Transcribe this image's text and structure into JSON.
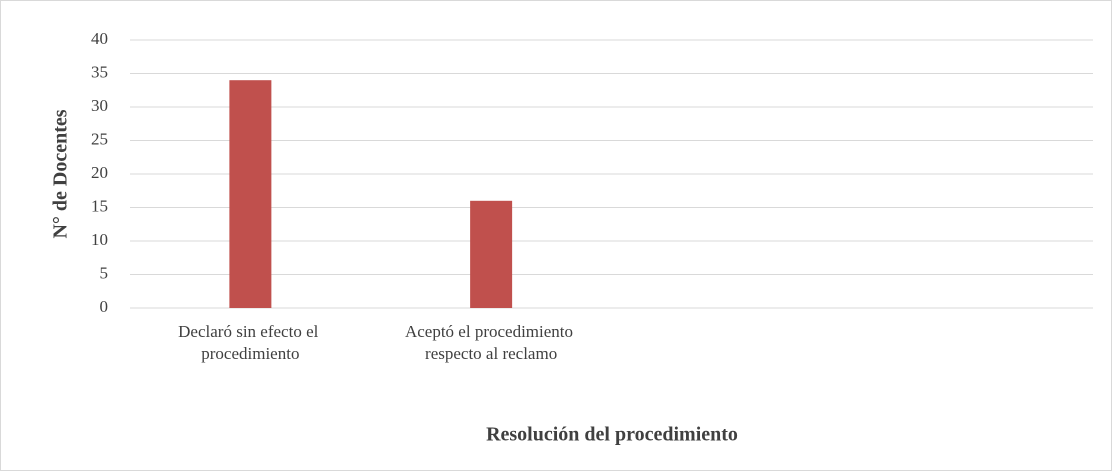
{
  "chart_data": {
    "type": "bar",
    "categories": [
      "Declaró sin efecto el procedimiento",
      "Aceptó el procedimiento respecto al reclamo",
      null,
      null
    ],
    "values": [
      34,
      16,
      null,
      null
    ],
    "color": "#c0504d",
    "ylim": [
      0,
      40
    ],
    "yticks": [
      0,
      5,
      10,
      15,
      20,
      25,
      30,
      35,
      40
    ],
    "grid": true,
    "xlabel": "Resolución del procedimiento",
    "ylabel": "N° de Docentes"
  }
}
